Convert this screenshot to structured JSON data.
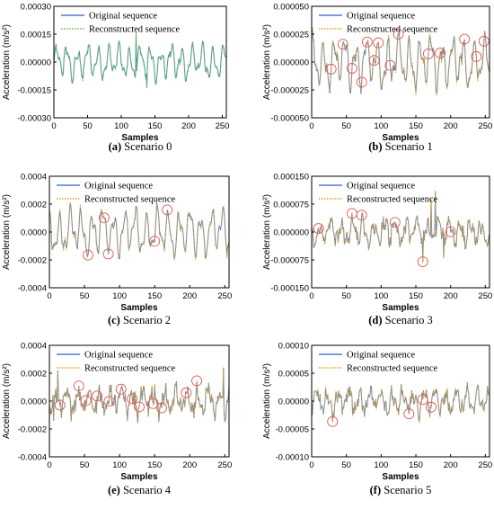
{
  "colors": {
    "original": "#4a7fd4",
    "reconstructed_dotted": "#e7a21e",
    "reconstructed_panel0": "#6bbf3a",
    "circle": "#e25a5a"
  },
  "chart_data": [
    {
      "type": "line",
      "caption_letter": "(a)",
      "caption_text": "Scenario 0",
      "xlabel": "Samples",
      "ylabel": "Acceleration (m/s²)",
      "xlim": [
        0,
        256
      ],
      "ylim": [
        -0.0003,
        0.0003
      ],
      "xticks": [
        "0",
        "50",
        "100",
        "150",
        "200",
        "250"
      ],
      "yticks": [
        "-0.00030",
        "-0.00015",
        "0.00000",
        "0.00015",
        "0.00030"
      ],
      "legend": [
        "Original sequence",
        "Reconstructed sequence"
      ],
      "legend_position": "top-left",
      "amplitude": 9e-05,
      "noise": 0.15,
      "spikes": [
        {
          "x": 122,
          "y": 0.00016
        },
        {
          "x": 138,
          "y": -0.00014
        }
      ],
      "error_markers_x": []
    },
    {
      "type": "line",
      "caption_letter": "(b)",
      "caption_text": "Scenario 1",
      "xlabel": "Samples",
      "ylabel": "Acceleration (m/s²)",
      "xlim": [
        0,
        256
      ],
      "ylim": [
        -5e-05,
        5e-05
      ],
      "xticks": [
        "0",
        "50",
        "100",
        "150",
        "200",
        "250"
      ],
      "yticks": [
        "-0.000050",
        "-0.000025",
        "0.000000",
        "0.000025",
        "0.000050"
      ],
      "legend": [
        "Original sequence",
        "Reconstructed sequence"
      ],
      "legend_position": "top-left",
      "amplitude": 2.2e-05,
      "noise": 0.2,
      "spikes": [],
      "error_markers_x": [
        28,
        45,
        58,
        72,
        80,
        90,
        96,
        113,
        125,
        168,
        185,
        220,
        237,
        248
      ]
    },
    {
      "type": "line",
      "caption_letter": "(c)",
      "caption_text": "Scenario 2",
      "xlabel": "Samples",
      "ylabel": "Acceleration (m/s²)",
      "xlim": [
        0,
        256
      ],
      "ylim": [
        -0.0004,
        0.0004
      ],
      "xticks": [
        "0",
        "50",
        "100",
        "150",
        "200",
        "250"
      ],
      "yticks": [
        "-0.0004",
        "-0.0002",
        "0.0000",
        "0.0002",
        "0.0004"
      ],
      "legend": [
        "Original sequence",
        "Reconstructed sequence"
      ],
      "legend_position": "top-left",
      "amplitude": 0.00016,
      "noise": 0.15,
      "spikes": [],
      "error_markers_x": [
        55,
        78,
        84,
        150,
        168
      ]
    },
    {
      "type": "line",
      "caption_letter": "(d)",
      "caption_text": "Scenario 3",
      "xlabel": "Samples",
      "ylabel": "Acceleration (m/s²)",
      "xlim": [
        0,
        256
      ],
      "ylim": [
        -0.00015,
        0.00015
      ],
      "xticks": [
        "0",
        "50",
        "100",
        "150",
        "200",
        "250"
      ],
      "yticks": [
        "-0.000150",
        "-0.000075",
        "0.000000",
        "0.000075",
        "0.000150"
      ],
      "legend": [
        "Original sequence",
        "Reconstructed sequence"
      ],
      "legend_position": "top-left",
      "amplitude": 3e-05,
      "noise": 0.6,
      "spikes": [
        {
          "x": 160,
          "y": -8e-05
        },
        {
          "x": 172,
          "y": 9e-05
        },
        {
          "x": 178,
          "y": 0.00011
        },
        {
          "x": 190,
          "y": -7e-05
        }
      ],
      "error_markers_x": [
        10,
        58,
        72,
        120,
        160,
        200
      ]
    },
    {
      "type": "line",
      "caption_letter": "(e)",
      "caption_text": "Scenario 4",
      "xlabel": "Samples",
      "ylabel": "Acceleration (m/s²)",
      "xlim": [
        0,
        256
      ],
      "ylim": [
        -0.0004,
        0.0004
      ],
      "xticks": [
        "0",
        "50",
        "100",
        "150",
        "200",
        "250"
      ],
      "yticks": [
        "-0.0004",
        "-0.0002",
        "0.0000",
        "0.0002",
        "0.0004"
      ],
      "legend": [
        "Original sequence",
        "Reconstructed sequence"
      ],
      "legend_position": "top-left",
      "amplitude": 9e-05,
      "noise": 0.7,
      "spikes": [
        {
          "x": 12,
          "y": 0.00022
        },
        {
          "x": 248,
          "y": 0.00024
        },
        {
          "x": 6,
          "y": -0.00014
        }
      ],
      "error_markers_x": [
        15,
        42,
        52,
        68,
        85,
        102,
        118,
        128,
        148,
        160,
        195,
        210
      ]
    },
    {
      "type": "line",
      "caption_letter": "(f)",
      "caption_text": "Scenario 5",
      "xlabel": "Samples",
      "ylabel": "Acceleration (m/s²)",
      "xlim": [
        0,
        256
      ],
      "ylim": [
        -0.0001,
        0.0001
      ],
      "xticks": [
        "0",
        "50",
        "100",
        "150",
        "200",
        "250"
      ],
      "yticks": [
        "-0.00010",
        "-0.00005",
        "0.00000",
        "0.00005",
        "0.00010"
      ],
      "legend": [
        "Original sequence",
        "Reconstructed sequence"
      ],
      "legend_position": "top-left",
      "amplitude": 2e-05,
      "noise": 0.6,
      "spikes": [],
      "error_markers_x": [
        30,
        140,
        160,
        172
      ]
    }
  ]
}
